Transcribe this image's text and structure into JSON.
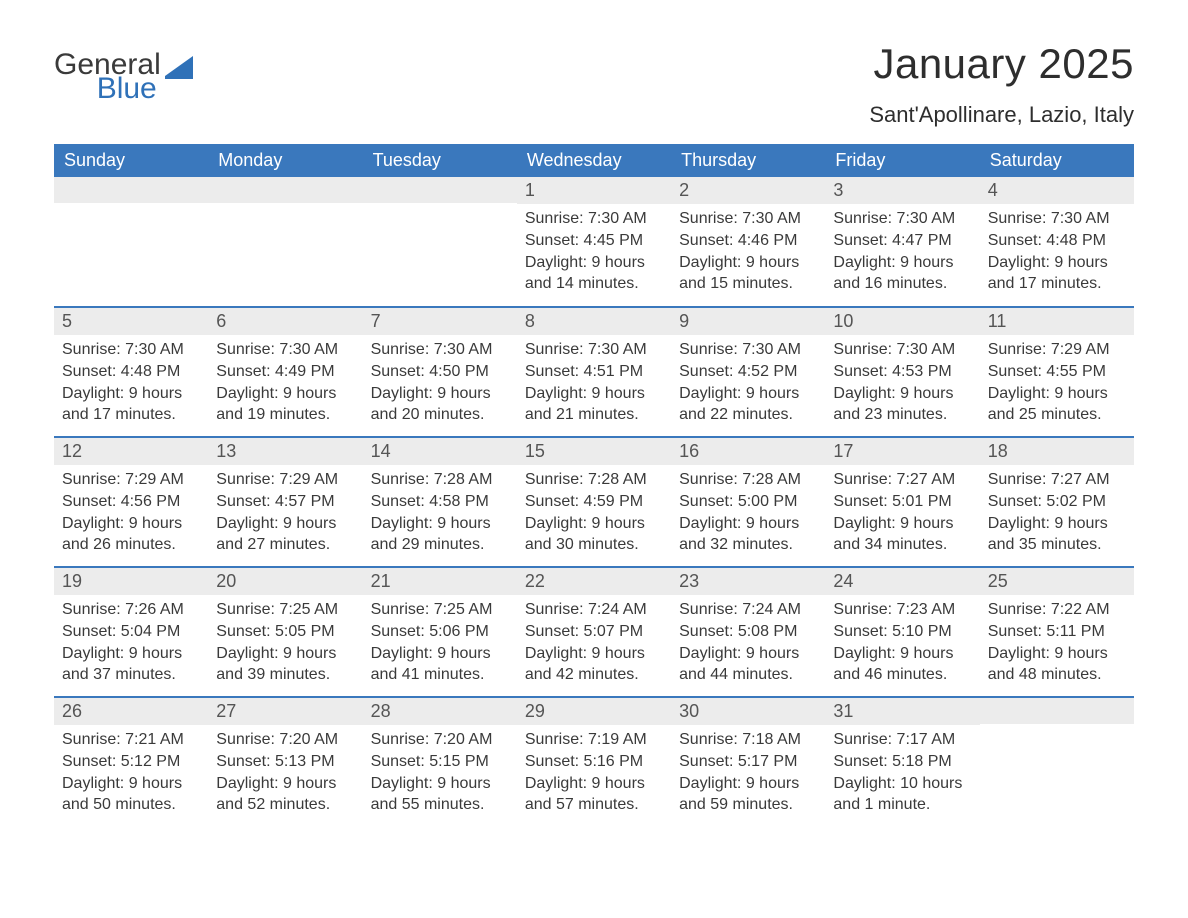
{
  "brand": {
    "word1": "General",
    "word2": "Blue",
    "word1_color": "#3a3a3a",
    "word2_color": "#2f71b8",
    "mark_color": "#2f71b8"
  },
  "header": {
    "title": "January 2025",
    "location": "Sant'Apollinare, Lazio, Italy"
  },
  "calendar": {
    "header_bg": "#3a78bd",
    "header_fg": "#ffffff",
    "daynum_bg": "#ececec",
    "daynum_fg": "#555555",
    "row_divider": "#3a78bd",
    "body_fg": "#3a3a3a",
    "background": "#ffffff",
    "columns": [
      "Sunday",
      "Monday",
      "Tuesday",
      "Wednesday",
      "Thursday",
      "Friday",
      "Saturday"
    ],
    "weeks": [
      [
        null,
        null,
        null,
        {
          "n": "1",
          "sunrise": "Sunrise: 7:30 AM",
          "sunset": "Sunset: 4:45 PM",
          "dl1": "Daylight: 9 hours",
          "dl2": "and 14 minutes."
        },
        {
          "n": "2",
          "sunrise": "Sunrise: 7:30 AM",
          "sunset": "Sunset: 4:46 PM",
          "dl1": "Daylight: 9 hours",
          "dl2": "and 15 minutes."
        },
        {
          "n": "3",
          "sunrise": "Sunrise: 7:30 AM",
          "sunset": "Sunset: 4:47 PM",
          "dl1": "Daylight: 9 hours",
          "dl2": "and 16 minutes."
        },
        {
          "n": "4",
          "sunrise": "Sunrise: 7:30 AM",
          "sunset": "Sunset: 4:48 PM",
          "dl1": "Daylight: 9 hours",
          "dl2": "and 17 minutes."
        }
      ],
      [
        {
          "n": "5",
          "sunrise": "Sunrise: 7:30 AM",
          "sunset": "Sunset: 4:48 PM",
          "dl1": "Daylight: 9 hours",
          "dl2": "and 17 minutes."
        },
        {
          "n": "6",
          "sunrise": "Sunrise: 7:30 AM",
          "sunset": "Sunset: 4:49 PM",
          "dl1": "Daylight: 9 hours",
          "dl2": "and 19 minutes."
        },
        {
          "n": "7",
          "sunrise": "Sunrise: 7:30 AM",
          "sunset": "Sunset: 4:50 PM",
          "dl1": "Daylight: 9 hours",
          "dl2": "and 20 minutes."
        },
        {
          "n": "8",
          "sunrise": "Sunrise: 7:30 AM",
          "sunset": "Sunset: 4:51 PM",
          "dl1": "Daylight: 9 hours",
          "dl2": "and 21 minutes."
        },
        {
          "n": "9",
          "sunrise": "Sunrise: 7:30 AM",
          "sunset": "Sunset: 4:52 PM",
          "dl1": "Daylight: 9 hours",
          "dl2": "and 22 minutes."
        },
        {
          "n": "10",
          "sunrise": "Sunrise: 7:30 AM",
          "sunset": "Sunset: 4:53 PM",
          "dl1": "Daylight: 9 hours",
          "dl2": "and 23 minutes."
        },
        {
          "n": "11",
          "sunrise": "Sunrise: 7:29 AM",
          "sunset": "Sunset: 4:55 PM",
          "dl1": "Daylight: 9 hours",
          "dl2": "and 25 minutes."
        }
      ],
      [
        {
          "n": "12",
          "sunrise": "Sunrise: 7:29 AM",
          "sunset": "Sunset: 4:56 PM",
          "dl1": "Daylight: 9 hours",
          "dl2": "and 26 minutes."
        },
        {
          "n": "13",
          "sunrise": "Sunrise: 7:29 AM",
          "sunset": "Sunset: 4:57 PM",
          "dl1": "Daylight: 9 hours",
          "dl2": "and 27 minutes."
        },
        {
          "n": "14",
          "sunrise": "Sunrise: 7:28 AM",
          "sunset": "Sunset: 4:58 PM",
          "dl1": "Daylight: 9 hours",
          "dl2": "and 29 minutes."
        },
        {
          "n": "15",
          "sunrise": "Sunrise: 7:28 AM",
          "sunset": "Sunset: 4:59 PM",
          "dl1": "Daylight: 9 hours",
          "dl2": "and 30 minutes."
        },
        {
          "n": "16",
          "sunrise": "Sunrise: 7:28 AM",
          "sunset": "Sunset: 5:00 PM",
          "dl1": "Daylight: 9 hours",
          "dl2": "and 32 minutes."
        },
        {
          "n": "17",
          "sunrise": "Sunrise: 7:27 AM",
          "sunset": "Sunset: 5:01 PM",
          "dl1": "Daylight: 9 hours",
          "dl2": "and 34 minutes."
        },
        {
          "n": "18",
          "sunrise": "Sunrise: 7:27 AM",
          "sunset": "Sunset: 5:02 PM",
          "dl1": "Daylight: 9 hours",
          "dl2": "and 35 minutes."
        }
      ],
      [
        {
          "n": "19",
          "sunrise": "Sunrise: 7:26 AM",
          "sunset": "Sunset: 5:04 PM",
          "dl1": "Daylight: 9 hours",
          "dl2": "and 37 minutes."
        },
        {
          "n": "20",
          "sunrise": "Sunrise: 7:25 AM",
          "sunset": "Sunset: 5:05 PM",
          "dl1": "Daylight: 9 hours",
          "dl2": "and 39 minutes."
        },
        {
          "n": "21",
          "sunrise": "Sunrise: 7:25 AM",
          "sunset": "Sunset: 5:06 PM",
          "dl1": "Daylight: 9 hours",
          "dl2": "and 41 minutes."
        },
        {
          "n": "22",
          "sunrise": "Sunrise: 7:24 AM",
          "sunset": "Sunset: 5:07 PM",
          "dl1": "Daylight: 9 hours",
          "dl2": "and 42 minutes."
        },
        {
          "n": "23",
          "sunrise": "Sunrise: 7:24 AM",
          "sunset": "Sunset: 5:08 PM",
          "dl1": "Daylight: 9 hours",
          "dl2": "and 44 minutes."
        },
        {
          "n": "24",
          "sunrise": "Sunrise: 7:23 AM",
          "sunset": "Sunset: 5:10 PM",
          "dl1": "Daylight: 9 hours",
          "dl2": "and 46 minutes."
        },
        {
          "n": "25",
          "sunrise": "Sunrise: 7:22 AM",
          "sunset": "Sunset: 5:11 PM",
          "dl1": "Daylight: 9 hours",
          "dl2": "and 48 minutes."
        }
      ],
      [
        {
          "n": "26",
          "sunrise": "Sunrise: 7:21 AM",
          "sunset": "Sunset: 5:12 PM",
          "dl1": "Daylight: 9 hours",
          "dl2": "and 50 minutes."
        },
        {
          "n": "27",
          "sunrise": "Sunrise: 7:20 AM",
          "sunset": "Sunset: 5:13 PM",
          "dl1": "Daylight: 9 hours",
          "dl2": "and 52 minutes."
        },
        {
          "n": "28",
          "sunrise": "Sunrise: 7:20 AM",
          "sunset": "Sunset: 5:15 PM",
          "dl1": "Daylight: 9 hours",
          "dl2": "and 55 minutes."
        },
        {
          "n": "29",
          "sunrise": "Sunrise: 7:19 AM",
          "sunset": "Sunset: 5:16 PM",
          "dl1": "Daylight: 9 hours",
          "dl2": "and 57 minutes."
        },
        {
          "n": "30",
          "sunrise": "Sunrise: 7:18 AM",
          "sunset": "Sunset: 5:17 PM",
          "dl1": "Daylight: 9 hours",
          "dl2": "and 59 minutes."
        },
        {
          "n": "31",
          "sunrise": "Sunrise: 7:17 AM",
          "sunset": "Sunset: 5:18 PM",
          "dl1": "Daylight: 10 hours",
          "dl2": "and 1 minute."
        },
        null
      ]
    ]
  }
}
